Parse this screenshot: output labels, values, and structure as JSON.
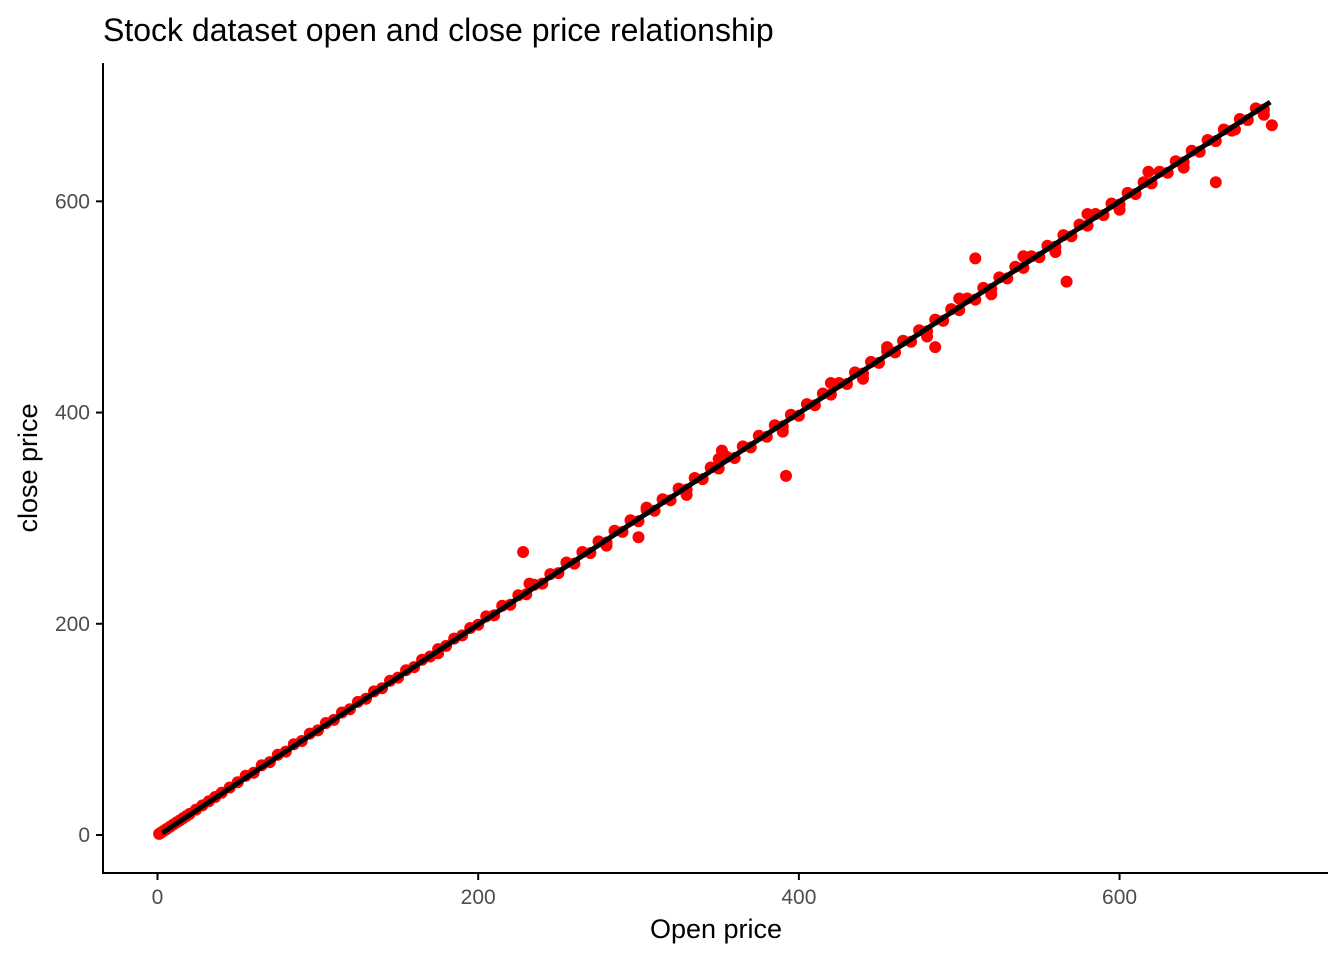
{
  "chart_data": {
    "type": "scatter",
    "title": "Stock dataset open and close price relationship",
    "xlabel": "Open price",
    "ylabel": "close price",
    "xlim": [
      -34,
      730
    ],
    "ylim": [
      -36,
      731
    ],
    "x_ticks": [
      0,
      200,
      400,
      600
    ],
    "y_ticks": [
      0,
      200,
      400,
      600
    ],
    "x_tick_labels": [
      "0",
      "200",
      "400",
      "600"
    ],
    "y_tick_labels": [
      "0",
      "200",
      "400",
      "600"
    ],
    "grid": false,
    "legend": "none",
    "colors": {
      "points": "#ff0000",
      "fit_line": "#000000",
      "axis": "#000000",
      "tick_text": "#4d4d4d"
    },
    "series": [
      {
        "kind": "points",
        "x": [
          1,
          2,
          3,
          4,
          5,
          6,
          8,
          10,
          12,
          14,
          16,
          18,
          20,
          24,
          28,
          32,
          36,
          40,
          45,
          50,
          55,
          60,
          65,
          70,
          75,
          80,
          85,
          90,
          95,
          100,
          105,
          110,
          115,
          120,
          125,
          130,
          135,
          140,
          145,
          150,
          155,
          160,
          165,
          170,
          175,
          180,
          185,
          190,
          195,
          200,
          205,
          210,
          215,
          220,
          225,
          230,
          235,
          240,
          245,
          250,
          255,
          260,
          265,
          270,
          275,
          280,
          285,
          290,
          295,
          300,
          305,
          310,
          315,
          320,
          325,
          330,
          335,
          340,
          345,
          350,
          355,
          360,
          365,
          370,
          375,
          380,
          385,
          390,
          395,
          400,
          405,
          410,
          415,
          420,
          425,
          430,
          435,
          440,
          445,
          450,
          455,
          460,
          465,
          470,
          475,
          480,
          485,
          490,
          495,
          500,
          505,
          510,
          515,
          520,
          525,
          530,
          535,
          540,
          545,
          550,
          555,
          560,
          565,
          570,
          575,
          580,
          585,
          590,
          595,
          600,
          605,
          610,
          615,
          620,
          625,
          630,
          635,
          640,
          645,
          650,
          655,
          660,
          665,
          670,
          675,
          680,
          685,
          690,
          175,
          232,
          280,
          305,
          330,
          350,
          390,
          420,
          440,
          455,
          480,
          500,
          520,
          540,
          560,
          580,
          600,
          618,
          640,
          655,
          672,
          690,
          228,
          300,
          352,
          392,
          485,
          510,
          567,
          660,
          695
        ],
        "y": [
          1,
          2,
          3,
          4,
          5,
          6,
          8,
          10,
          12,
          14,
          16,
          18,
          20,
          24,
          28,
          32,
          36,
          40,
          45,
          50,
          56,
          59,
          66,
          69,
          76,
          79,
          86,
          89,
          96,
          99,
          106,
          109,
          116,
          119,
          126,
          129,
          136,
          139,
          146,
          149,
          156,
          159,
          166,
          169,
          176,
          179,
          186,
          189,
          196,
          199,
          207,
          208,
          217,
          218,
          227,
          228,
          237,
          238,
          247,
          248,
          258,
          257,
          268,
          267,
          278,
          277,
          288,
          287,
          298,
          297,
          308,
          307,
          318,
          317,
          328,
          327,
          338,
          337,
          348,
          347,
          358,
          357,
          368,
          367,
          378,
          377,
          388,
          387,
          398,
          397,
          408,
          407,
          418,
          417,
          428,
          427,
          438,
          437,
          448,
          447,
          458,
          457,
          468,
          467,
          478,
          477,
          488,
          487,
          498,
          497,
          508,
          507,
          518,
          517,
          528,
          527,
          538,
          537,
          548,
          547,
          558,
          557,
          568,
          567,
          578,
          577,
          588,
          587,
          598,
          597,
          608,
          607,
          618,
          617,
          628,
          627,
          638,
          637,
          648,
          647,
          658,
          657,
          668,
          667,
          678,
          677,
          688,
          687,
          172,
          238,
          274,
          310,
          322,
          356,
          382,
          428,
          432,
          462,
          472,
          508,
          512,
          548,
          552,
          588,
          592,
          628,
          632,
          658,
          668,
          682,
          268,
          282,
          364,
          340,
          462,
          546,
          524,
          618,
          672
        ]
      },
      {
        "kind": "fit_line",
        "x": [
          3,
          694
        ],
        "y": [
          2,
          694
        ]
      }
    ]
  }
}
